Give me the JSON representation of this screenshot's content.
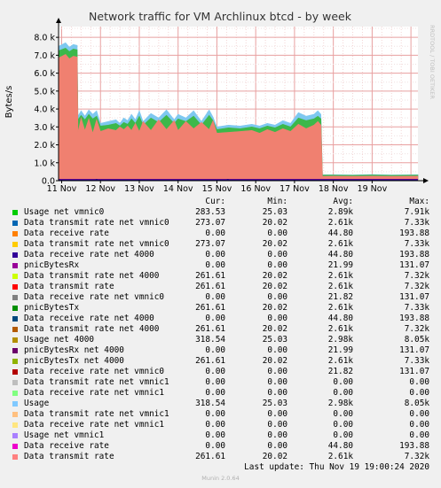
{
  "chart_data": {
    "type": "area",
    "title": "Network traffic for VM Archlinux btcd - by week",
    "ylabel": "Bytes/s",
    "side_label": "RRDTOOL / TOBI OETIKER",
    "ylim": [
      0,
      8600
    ],
    "yticks": [
      {
        "value": 0,
        "label": "0.0"
      },
      {
        "value": 1000,
        "label": "1.0 k"
      },
      {
        "value": 2000,
        "label": "2.0 k"
      },
      {
        "value": 3000,
        "label": "3.0 k"
      },
      {
        "value": 4000,
        "label": "4.0 k"
      },
      {
        "value": 5000,
        "label": "5.0 k"
      },
      {
        "value": 6000,
        "label": "6.0 k"
      },
      {
        "value": 7000,
        "label": "7.0 k"
      },
      {
        "value": 8000,
        "label": "8.0 k"
      }
    ],
    "xlim": [
      -0.08,
      9.18
    ],
    "xticks": [
      {
        "value": 0,
        "label": "11 Nov"
      },
      {
        "value": 1,
        "label": "12 Nov"
      },
      {
        "value": 2,
        "label": "13 Nov"
      },
      {
        "value": 3,
        "label": "14 Nov"
      },
      {
        "value": 4,
        "label": "15 Nov"
      },
      {
        "value": 5,
        "label": "16 Nov"
      },
      {
        "value": 6,
        "label": "17 Nov"
      },
      {
        "value": 7,
        "label": "18 Nov"
      },
      {
        "value": 8,
        "label": "19 Nov"
      }
    ],
    "grid": true,
    "series": [
      {
        "name": "Usage",
        "color": "#7ec8f0",
        "points": [
          [
            -0.08,
            7500
          ],
          [
            0.1,
            7700
          ],
          [
            0.2,
            7450
          ],
          [
            0.3,
            7600
          ],
          [
            0.4,
            7550
          ],
          [
            0.42,
            3600
          ],
          [
            0.5,
            3900
          ],
          [
            0.6,
            3600
          ],
          [
            0.7,
            3950
          ],
          [
            0.8,
            3700
          ],
          [
            0.9,
            3900
          ],
          [
            1.0,
            3200
          ],
          [
            1.2,
            3300
          ],
          [
            1.4,
            3400
          ],
          [
            1.5,
            3200
          ],
          [
            1.6,
            3500
          ],
          [
            1.7,
            3350
          ],
          [
            1.8,
            3700
          ],
          [
            1.9,
            3400
          ],
          [
            2.0,
            3900
          ],
          [
            2.1,
            3300
          ],
          [
            2.3,
            3750
          ],
          [
            2.5,
            3500
          ],
          [
            2.7,
            3950
          ],
          [
            2.9,
            3400
          ],
          [
            3.0,
            3700
          ],
          [
            3.2,
            3500
          ],
          [
            3.4,
            3900
          ],
          [
            3.6,
            3300
          ],
          [
            3.8,
            3950
          ],
          [
            3.9,
            3550
          ],
          [
            4.0,
            3000
          ],
          [
            4.3,
            3100
          ],
          [
            4.6,
            3050
          ],
          [
            4.9,
            3150
          ],
          [
            5.1,
            3050
          ],
          [
            5.3,
            3200
          ],
          [
            5.5,
            3100
          ],
          [
            5.7,
            3350
          ],
          [
            5.9,
            3200
          ],
          [
            6.1,
            3800
          ],
          [
            6.3,
            3600
          ],
          [
            6.5,
            3700
          ],
          [
            6.6,
            3900
          ],
          [
            6.68,
            3700
          ],
          [
            6.72,
            330
          ],
          [
            7.0,
            330
          ],
          [
            7.5,
            320
          ],
          [
            8.0,
            340
          ],
          [
            8.5,
            320
          ],
          [
            9.18,
            330
          ]
        ]
      },
      {
        "name": "Usage net 4000",
        "color": "#3cb84a",
        "points": [
          [
            -0.08,
            7250
          ],
          [
            0.1,
            7400
          ],
          [
            0.2,
            7200
          ],
          [
            0.3,
            7350
          ],
          [
            0.4,
            7300
          ],
          [
            0.42,
            3400
          ],
          [
            0.5,
            3650
          ],
          [
            0.6,
            3400
          ],
          [
            0.7,
            3700
          ],
          [
            0.8,
            3450
          ],
          [
            0.9,
            3600
          ],
          [
            1.0,
            3050
          ],
          [
            1.2,
            3100
          ],
          [
            1.4,
            3200
          ],
          [
            1.5,
            3050
          ],
          [
            1.6,
            3250
          ],
          [
            1.7,
            3150
          ],
          [
            1.8,
            3450
          ],
          [
            1.9,
            3200
          ],
          [
            2.0,
            3600
          ],
          [
            2.1,
            3100
          ],
          [
            2.3,
            3500
          ],
          [
            2.5,
            3250
          ],
          [
            2.7,
            3650
          ],
          [
            2.9,
            3200
          ],
          [
            3.0,
            3450
          ],
          [
            3.2,
            3300
          ],
          [
            3.4,
            3600
          ],
          [
            3.6,
            3100
          ],
          [
            3.8,
            3650
          ],
          [
            3.9,
            3350
          ],
          [
            4.0,
            2850
          ],
          [
            4.3,
            2950
          ],
          [
            4.6,
            2900
          ],
          [
            4.9,
            3000
          ],
          [
            5.1,
            2900
          ],
          [
            5.3,
            3050
          ],
          [
            5.5,
            2950
          ],
          [
            5.7,
            3150
          ],
          [
            5.9,
            3000
          ],
          [
            6.1,
            3500
          ],
          [
            6.3,
            3350
          ],
          [
            6.5,
            3450
          ],
          [
            6.6,
            3600
          ],
          [
            6.68,
            3450
          ],
          [
            6.72,
            310
          ],
          [
            7.0,
            310
          ],
          [
            7.5,
            300
          ],
          [
            8.0,
            320
          ],
          [
            8.5,
            300
          ],
          [
            9.18,
            310
          ]
        ]
      },
      {
        "name": "Data transmit rate",
        "color": "#f08070",
        "points": [
          [
            -0.08,
            6850
          ],
          [
            0.1,
            7050
          ],
          [
            0.2,
            6800
          ],
          [
            0.3,
            6950
          ],
          [
            0.4,
            6900
          ],
          [
            0.42,
            2700
          ],
          [
            0.5,
            3500
          ],
          [
            0.6,
            2800
          ],
          [
            0.7,
            3450
          ],
          [
            0.8,
            2650
          ],
          [
            0.9,
            3400
          ],
          [
            1.0,
            2750
          ],
          [
            1.2,
            2900
          ],
          [
            1.4,
            2800
          ],
          [
            1.5,
            3000
          ],
          [
            1.6,
            2850
          ],
          [
            1.7,
            3050
          ],
          [
            1.8,
            2800
          ],
          [
            1.9,
            3200
          ],
          [
            2.0,
            2750
          ],
          [
            2.1,
            3300
          ],
          [
            2.3,
            2800
          ],
          [
            2.5,
            3400
          ],
          [
            2.7,
            2850
          ],
          [
            2.9,
            3350
          ],
          [
            3.0,
            2800
          ],
          [
            3.2,
            3300
          ],
          [
            3.4,
            2900
          ],
          [
            3.6,
            3250
          ],
          [
            3.8,
            2850
          ],
          [
            3.9,
            3350
          ],
          [
            4.0,
            2650
          ],
          [
            4.3,
            2700
          ],
          [
            4.6,
            2750
          ],
          [
            4.9,
            2800
          ],
          [
            5.1,
            2650
          ],
          [
            5.3,
            2850
          ],
          [
            5.5,
            2700
          ],
          [
            5.7,
            2900
          ],
          [
            5.9,
            2750
          ],
          [
            6.1,
            3150
          ],
          [
            6.3,
            2900
          ],
          [
            6.5,
            3100
          ],
          [
            6.6,
            3300
          ],
          [
            6.68,
            3100
          ],
          [
            6.72,
            240
          ],
          [
            7.0,
            250
          ],
          [
            7.5,
            240
          ],
          [
            8.0,
            250
          ],
          [
            8.5,
            240
          ],
          [
            9.18,
            250
          ]
        ]
      },
      {
        "name": "Data receive rate",
        "color": "#9000a0",
        "points": [
          [
            -0.08,
            60
          ],
          [
            9.18,
            60
          ]
        ]
      },
      {
        "name": "Data receive rate net 4000",
        "color": "#180080",
        "points": [
          [
            -0.08,
            30
          ],
          [
            9.18,
            30
          ]
        ]
      }
    ],
    "tick_marks": [
      {
        "x": 0.9,
        "y": 90,
        "color": "#180080"
      },
      {
        "x": 4.28,
        "y": 90,
        "color": "#180080"
      }
    ],
    "legend": {
      "headers": [
        "Cur:",
        "Min:",
        "Avg:",
        "Max:"
      ],
      "rows": [
        {
          "color": "#00cc00",
          "name": "Usage net vmnic0",
          "cur": "283.53",
          "min": "25.03",
          "avg": "2.89k",
          "max": "7.91k"
        },
        {
          "color": "#0066b3",
          "name": "Data transmit rate net vmnic0",
          "cur": "273.07",
          "min": "20.02",
          "avg": "2.61k",
          "max": "7.33k"
        },
        {
          "color": "#ff8000",
          "name": "Data receive rate",
          "cur": "0.00",
          "min": "0.00",
          "avg": "44.80",
          "max": "193.88"
        },
        {
          "color": "#ffcc00",
          "name": "Data transmit rate net vmnic0",
          "cur": "273.07",
          "min": "20.02",
          "avg": "2.61k",
          "max": "7.33k"
        },
        {
          "color": "#330099",
          "name": "Data receive rate net 4000",
          "cur": "0.00",
          "min": "0.00",
          "avg": "44.80",
          "max": "193.88"
        },
        {
          "color": "#990099",
          "name": "pnicBytesRx",
          "cur": "0.00",
          "min": "0.00",
          "avg": "21.99",
          "max": "131.07"
        },
        {
          "color": "#ccff00",
          "name": "Data transmit rate net 4000",
          "cur": "261.61",
          "min": "20.02",
          "avg": "2.61k",
          "max": "7.32k"
        },
        {
          "color": "#ff0000",
          "name": "Data transmit rate",
          "cur": "261.61",
          "min": "20.02",
          "avg": "2.61k",
          "max": "7.32k"
        },
        {
          "color": "#808080",
          "name": "Data receive rate net vmnic0",
          "cur": "0.00",
          "min": "0.00",
          "avg": "21.82",
          "max": "131.07"
        },
        {
          "color": "#008f00",
          "name": "pnicBytesTx",
          "cur": "261.61",
          "min": "20.02",
          "avg": "2.61k",
          "max": "7.33k"
        },
        {
          "color": "#00487d",
          "name": "Data receive rate net 4000",
          "cur": "0.00",
          "min": "0.00",
          "avg": "44.80",
          "max": "193.88"
        },
        {
          "color": "#b35a00",
          "name": "Data transmit rate net 4000",
          "cur": "261.61",
          "min": "20.02",
          "avg": "2.61k",
          "max": "7.32k"
        },
        {
          "color": "#b38f00",
          "name": "Usage net 4000",
          "cur": "318.54",
          "min": "25.03",
          "avg": "2.98k",
          "max": "8.05k"
        },
        {
          "color": "#6b006b",
          "name": "pnicBytesRx net 4000",
          "cur": "0.00",
          "min": "0.00",
          "avg": "21.99",
          "max": "131.07"
        },
        {
          "color": "#8fb300",
          "name": "pnicBytesTx net 4000",
          "cur": "261.61",
          "min": "20.02",
          "avg": "2.61k",
          "max": "7.33k"
        },
        {
          "color": "#b30000",
          "name": "Data receive rate net vmnic0",
          "cur": "0.00",
          "min": "0.00",
          "avg": "21.82",
          "max": "131.07"
        },
        {
          "color": "#bebebe",
          "name": "Data transmit rate net vmnic1",
          "cur": "0.00",
          "min": "0.00",
          "avg": "0.00",
          "max": "0.00"
        },
        {
          "color": "#80ff80",
          "name": "Data receive rate net vmnic1",
          "cur": "0.00",
          "min": "0.00",
          "avg": "0.00",
          "max": "0.00"
        },
        {
          "color": "#80c9ff",
          "name": "Usage",
          "cur": "318.54",
          "min": "25.03",
          "avg": "2.98k",
          "max": "8.05k"
        },
        {
          "color": "#ffc080",
          "name": "Data transmit rate net vmnic1",
          "cur": "0.00",
          "min": "0.00",
          "avg": "0.00",
          "max": "0.00"
        },
        {
          "color": "#ffe680",
          "name": "Data receive rate net vmnic1",
          "cur": "0.00",
          "min": "0.00",
          "avg": "0.00",
          "max": "0.00"
        },
        {
          "color": "#aa80ff",
          "name": "Usage net vmnic1",
          "cur": "0.00",
          "min": "0.00",
          "avg": "0.00",
          "max": "0.00"
        },
        {
          "color": "#ee00cc",
          "name": "Data receive rate",
          "cur": "0.00",
          "min": "0.00",
          "avg": "44.80",
          "max": "193.88"
        },
        {
          "color": "#ff8080",
          "name": "Data transmit rate",
          "cur": "261.61",
          "min": "20.02",
          "avg": "2.61k",
          "max": "7.32k"
        }
      ]
    }
  },
  "last_update": "Last update: Thu Nov 19 19:00:24 2020",
  "footer": "Munin 2.0.64"
}
